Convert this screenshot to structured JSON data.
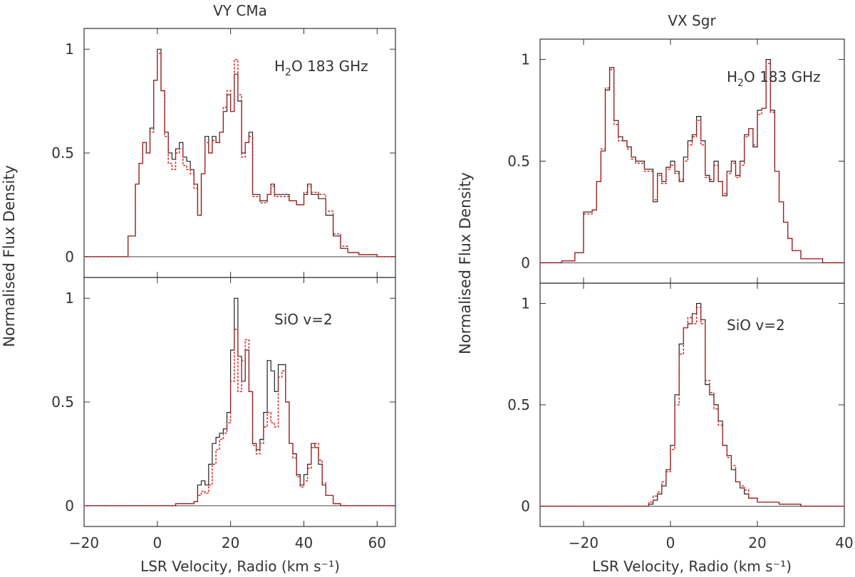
{
  "colors": {
    "axis": "#333333",
    "observed": "#222222",
    "model": "#e02020",
    "zero": "#444444"
  },
  "y_axis_label": "Normalised Flux Density",
  "x_axis_label": "LSR Velocity, Radio (km s⁻¹)",
  "chart_data": [
    {
      "type": "line",
      "title": "VY CMa",
      "xlabel": "LSR Velocity, Radio (km s⁻¹)",
      "ylabel": "Normalised Flux Density",
      "xlim": [
        -20,
        65
      ],
      "xticks": [
        -20,
        0,
        20,
        40,
        60
      ],
      "xtick_labels": [
        "−20",
        "0",
        "20",
        "40",
        "60"
      ],
      "panels": [
        {
          "label": "H2O 183 GHz",
          "label_main": "H",
          "label_sub": "2",
          "label_rest": "O 183 GHz",
          "ylim": [
            -0.1,
            1.1
          ],
          "yticks": [
            0,
            0.5,
            1
          ],
          "ytick_labels": [
            "0",
            "0.5",
            "1"
          ],
          "x": [
            -20,
            -10,
            -8,
            -6,
            -5,
            -4,
            -3,
            -2,
            -1,
            0,
            1,
            2,
            3,
            4,
            5,
            6,
            7,
            8,
            9,
            10,
            11,
            12,
            13,
            14,
            15,
            16,
            17,
            18,
            19,
            20,
            21,
            22,
            23,
            24,
            25,
            26,
            28,
            30,
            31,
            32,
            34,
            36,
            38,
            40,
            41,
            42,
            44,
            46,
            48,
            50,
            52,
            55,
            60,
            65
          ],
          "series": [
            {
              "name": "observed",
              "values": [
                0.0,
                0.0,
                0.1,
                0.35,
                0.45,
                0.55,
                0.5,
                0.62,
                0.85,
                1.0,
                0.8,
                0.6,
                0.5,
                0.47,
                0.52,
                0.55,
                0.48,
                0.46,
                0.42,
                0.35,
                0.2,
                0.4,
                0.58,
                0.5,
                0.58,
                0.55,
                0.6,
                0.7,
                0.78,
                0.7,
                0.88,
                0.75,
                0.5,
                0.55,
                0.6,
                0.3,
                0.27,
                0.3,
                0.35,
                0.3,
                0.3,
                0.27,
                0.25,
                0.3,
                0.35,
                0.3,
                0.28,
                0.2,
                0.1,
                0.04,
                0.02,
                0.01,
                0.0,
                0.0
              ]
            },
            {
              "name": "model",
              "values": [
                0.0,
                0.0,
                0.1,
                0.35,
                0.45,
                0.55,
                0.5,
                0.6,
                0.85,
                0.98,
                0.8,
                0.58,
                0.45,
                0.42,
                0.5,
                0.52,
                0.44,
                0.42,
                0.4,
                0.33,
                0.2,
                0.4,
                0.55,
                0.5,
                0.56,
                0.55,
                0.6,
                0.72,
                0.8,
                0.7,
                0.95,
                0.78,
                0.48,
                0.55,
                0.58,
                0.29,
                0.26,
                0.3,
                0.34,
                0.29,
                0.29,
                0.27,
                0.25,
                0.31,
                0.34,
                0.31,
                0.3,
                0.22,
                0.11,
                0.05,
                0.02,
                0.01,
                0.0,
                0.0
              ]
            }
          ]
        },
        {
          "label": "SiO v=2",
          "label_main": "SiO v=2",
          "label_sub": "",
          "label_rest": "",
          "ylim": [
            -0.1,
            1.1
          ],
          "yticks": [
            0,
            0.5,
            1
          ],
          "ytick_labels": [
            "0",
            "0.5",
            "1"
          ],
          "x": [
            -20,
            0,
            5,
            10,
            11,
            12,
            13,
            14,
            15,
            16,
            17,
            18,
            19,
            20,
            21,
            22,
            23,
            24,
            25,
            26,
            27,
            28,
            29,
            30,
            31,
            32,
            33,
            34,
            35,
            36,
            37,
            38,
            39,
            40,
            41,
            42,
            43,
            44,
            45,
            46,
            48,
            50,
            55,
            65
          ],
          "series": [
            {
              "name": "observed",
              "values": [
                0.0,
                0.0,
                0.01,
                0.02,
                0.1,
                0.12,
                0.1,
                0.2,
                0.3,
                0.33,
                0.35,
                0.37,
                0.45,
                0.75,
                1.0,
                0.72,
                0.6,
                0.75,
                0.55,
                0.3,
                0.27,
                0.32,
                0.45,
                0.7,
                0.65,
                0.55,
                0.68,
                0.68,
                0.5,
                0.3,
                0.25,
                0.15,
                0.1,
                0.15,
                0.2,
                0.3,
                0.28,
                0.2,
                0.1,
                0.05,
                0.01,
                0.0,
                0.0,
                0.0
              ]
            },
            {
              "name": "model",
              "values": [
                0.0,
                0.0,
                0.01,
                0.02,
                0.05,
                0.07,
                0.06,
                0.1,
                0.2,
                0.27,
                0.32,
                0.35,
                0.4,
                0.6,
                0.85,
                0.55,
                0.7,
                0.8,
                0.55,
                0.29,
                0.25,
                0.3,
                0.38,
                0.45,
                0.4,
                0.38,
                0.62,
                0.65,
                0.5,
                0.3,
                0.23,
                0.14,
                0.09,
                0.12,
                0.18,
                0.28,
                0.3,
                0.22,
                0.11,
                0.05,
                0.01,
                0.0,
                0.0,
                0.0
              ]
            }
          ]
        }
      ]
    },
    {
      "type": "line",
      "title": "VX Sgr",
      "xlabel": "LSR Velocity, Radio (km s⁻¹)",
      "ylabel": "Normalised Flux Density",
      "xlim": [
        -30,
        40
      ],
      "xticks": [
        -20,
        0,
        20,
        40
      ],
      "xtick_labels": [
        "−20",
        "0",
        "20",
        "40"
      ],
      "panels": [
        {
          "label": "H2O 183 GHz",
          "label_main": "H",
          "label_sub": "2",
          "label_rest": "O 183 GHz",
          "ylim": [
            -0.1,
            1.1
          ],
          "yticks": [
            0,
            0.5,
            1
          ],
          "ytick_labels": [
            "0",
            "0.5",
            "1"
          ],
          "x": [
            -30,
            -25,
            -22,
            -20,
            -18,
            -17,
            -16,
            -15,
            -14,
            -13,
            -12,
            -11,
            -10,
            -9,
            -8,
            -6,
            -4,
            -3,
            -2,
            -1,
            0,
            1,
            2,
            3,
            4,
            5,
            6,
            7,
            8,
            9,
            10,
            11,
            12,
            13,
            14,
            15,
            16,
            17,
            18,
            19,
            20,
            21,
            22,
            23,
            24,
            25,
            26,
            27,
            28,
            30,
            35,
            40
          ],
          "series": [
            {
              "name": "observed",
              "values": [
                0.0,
                0.01,
                0.05,
                0.25,
                0.26,
                0.4,
                0.55,
                0.85,
                0.96,
                0.7,
                0.62,
                0.6,
                0.57,
                0.52,
                0.5,
                0.46,
                0.3,
                0.44,
                0.4,
                0.47,
                0.5,
                0.45,
                0.4,
                0.52,
                0.6,
                0.63,
                0.72,
                0.6,
                0.43,
                0.4,
                0.5,
                0.4,
                0.33,
                0.45,
                0.5,
                0.43,
                0.5,
                0.63,
                0.66,
                0.57,
                0.75,
                0.76,
                1.0,
                0.75,
                0.45,
                0.3,
                0.2,
                0.12,
                0.06,
                0.02,
                0.0,
                0.0
              ]
            },
            {
              "name": "model",
              "values": [
                0.0,
                0.01,
                0.05,
                0.24,
                0.26,
                0.4,
                0.56,
                0.86,
                0.95,
                0.68,
                0.6,
                0.6,
                0.56,
                0.51,
                0.49,
                0.45,
                0.31,
                0.43,
                0.39,
                0.46,
                0.48,
                0.44,
                0.41,
                0.5,
                0.58,
                0.62,
                0.7,
                0.58,
                0.42,
                0.41,
                0.48,
                0.4,
                0.34,
                0.44,
                0.49,
                0.42,
                0.48,
                0.62,
                0.66,
                0.58,
                0.73,
                0.76,
                0.98,
                0.74,
                0.45,
                0.3,
                0.2,
                0.12,
                0.06,
                0.02,
                0.0,
                0.0
              ]
            }
          ]
        },
        {
          "label": "SiO v=2",
          "label_main": "SiO v=2",
          "label_sub": "",
          "label_rest": "",
          "ylim": [
            -0.1,
            1.1
          ],
          "yticks": [
            0,
            0.5,
            1
          ],
          "ytick_labels": [
            "0",
            "0.5",
            "1"
          ],
          "x": [
            -30,
            -10,
            -5,
            -4,
            -3,
            -2,
            -1,
            0,
            1,
            2,
            3,
            4,
            5,
            6,
            7,
            8,
            9,
            10,
            11,
            12,
            13,
            14,
            15,
            16,
            17,
            18,
            20,
            25,
            30,
            35,
            40
          ],
          "series": [
            {
              "name": "observed",
              "values": [
                0.0,
                0.0,
                0.01,
                0.03,
                0.06,
                0.1,
                0.18,
                0.3,
                0.55,
                0.8,
                0.88,
                0.9,
                0.95,
                1.0,
                0.92,
                0.6,
                0.55,
                0.5,
                0.42,
                0.3,
                0.25,
                0.18,
                0.12,
                0.09,
                0.06,
                0.04,
                0.02,
                0.01,
                0.0,
                0.0,
                0.0
              ]
            },
            {
              "name": "model",
              "values": [
                0.0,
                0.0,
                0.02,
                0.05,
                0.07,
                0.12,
                0.17,
                0.28,
                0.5,
                0.75,
                0.88,
                0.93,
                0.9,
                0.98,
                0.9,
                0.62,
                0.56,
                0.48,
                0.4,
                0.3,
                0.24,
                0.2,
                0.12,
                0.1,
                0.08,
                0.04,
                0.02,
                0.01,
                0.0,
                0.0,
                0.0
              ]
            }
          ]
        }
      ]
    }
  ]
}
